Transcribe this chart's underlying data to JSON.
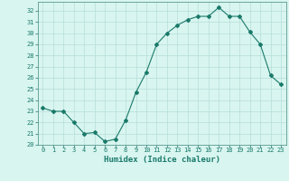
{
  "x": [
    0,
    1,
    2,
    3,
    4,
    5,
    6,
    7,
    8,
    9,
    10,
    11,
    12,
    13,
    14,
    15,
    16,
    17,
    18,
    19,
    20,
    21,
    22,
    23
  ],
  "y": [
    23.3,
    23.0,
    23.0,
    22.0,
    21.0,
    21.1,
    20.3,
    20.5,
    22.2,
    24.7,
    26.5,
    29.0,
    30.0,
    30.7,
    31.2,
    31.5,
    31.5,
    32.3,
    31.5,
    31.5,
    30.1,
    29.0,
    26.2,
    25.4
  ],
  "line_color": "#1a7a6a",
  "marker": "D",
  "marker_size": 2.0,
  "bg_color": "#d8f5f0",
  "grid_color": "#b8ddd8",
  "xlabel": "Humidex (Indice chaleur)",
  "xlim": [
    -0.5,
    23.5
  ],
  "ylim": [
    20,
    32.8
  ],
  "yticks": [
    20,
    21,
    22,
    23,
    24,
    25,
    26,
    27,
    28,
    29,
    30,
    31,
    32
  ],
  "xticks": [
    0,
    1,
    2,
    3,
    4,
    5,
    6,
    7,
    8,
    9,
    10,
    11,
    12,
    13,
    14,
    15,
    16,
    17,
    18,
    19,
    20,
    21,
    22,
    23
  ],
  "tick_color": "#1a7a6a",
  "axis_color": "#5a9a90",
  "tick_fontsize": 5.0,
  "xlabel_fontsize": 6.5,
  "linewidth": 0.8
}
